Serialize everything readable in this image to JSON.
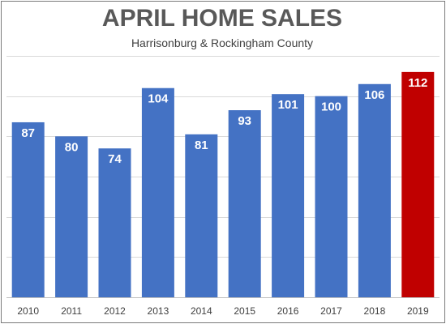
{
  "chart_data": {
    "type": "bar",
    "title": "APRIL HOME SALES",
    "subtitle": "Harrisonburg & Rockingham County",
    "xlabel": "",
    "ylabel": "",
    "categories": [
      "2010",
      "2011",
      "2012",
      "2013",
      "2014",
      "2015",
      "2016",
      "2017",
      "2018",
      "2019"
    ],
    "values": [
      87,
      80,
      74,
      104,
      81,
      93,
      101,
      100,
      106,
      112
    ],
    "ylim": [
      0,
      120
    ],
    "grid": true,
    "legend": "none",
    "data_labels": true,
    "colors": {
      "bar": "#4472C4",
      "highlight": "#C00000",
      "grid": "#D9D9D9",
      "axis": "#BFBFBF"
    },
    "highlight_index": 9
  }
}
